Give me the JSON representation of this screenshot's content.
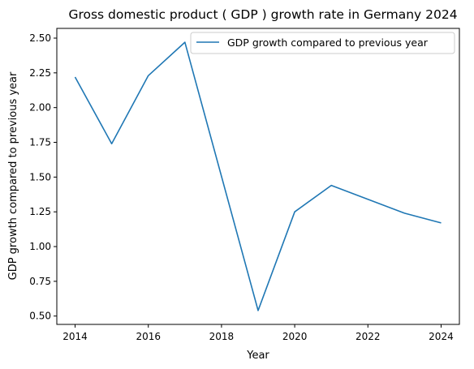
{
  "chart_data": {
    "type": "line",
    "title": "Gross domestic product ( GDP ) growth rate in Germany 2024",
    "xlabel": "Year",
    "ylabel": "GDP growth compared to previous year",
    "x": [
      2014,
      2015,
      2016,
      2017,
      2019,
      2020,
      2021,
      2023,
      2024
    ],
    "series": [
      {
        "name": "GDP growth compared to previous year",
        "color": "#1f77b4",
        "values": [
          2.22,
          1.74,
          2.23,
          2.47,
          0.54,
          1.25,
          1.44,
          1.24,
          1.17
        ]
      }
    ],
    "xlim": [
      2013.5,
      2024.5
    ],
    "ylim": [
      0.44,
      2.57
    ],
    "xticks": [
      2014,
      2016,
      2018,
      2020,
      2022,
      2024
    ],
    "xtick_labels": [
      "2014",
      "2016",
      "2018",
      "2020",
      "2022",
      "2024"
    ],
    "yticks": [
      0.5,
      0.75,
      1.0,
      1.25,
      1.5,
      1.75,
      2.0,
      2.25,
      2.5
    ],
    "ytick_labels": [
      "0.50",
      "0.75",
      "1.00",
      "1.25",
      "1.50",
      "1.75",
      "2.00",
      "2.25",
      "2.50"
    ],
    "grid": false,
    "legend_position": "top-right"
  }
}
